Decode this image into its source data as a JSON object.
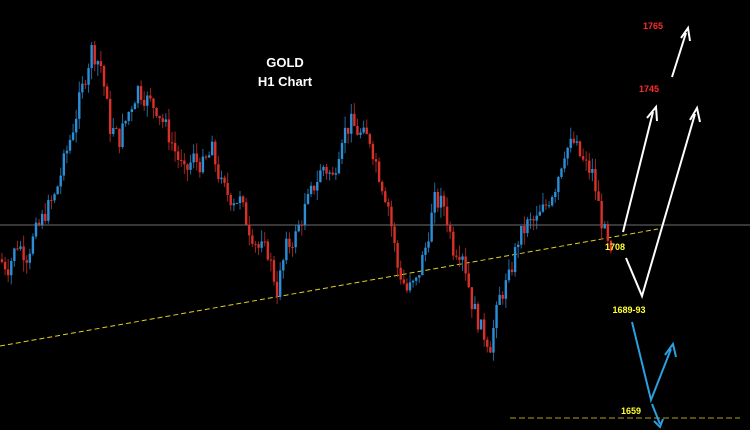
{
  "chart_data": {
    "type": "candlestick",
    "title": "GOLD",
    "subtitle": "H1 Chart",
    "colors": {
      "background": "#000000",
      "bull": "#2a8fd6",
      "bear": "#d9302a",
      "wick": "#7a8a99",
      "trendline": "#e0d020",
      "support": "#b0a020",
      "horizontal": "#8a8a8a",
      "projection_up": "#ffffff",
      "projection_down": "#2aa0e0",
      "label_yellow": "#ffff33",
      "label_red": "#ff2a2a"
    },
    "price_path": [
      1708,
      1706,
      1712,
      1709,
      1715,
      1720,
      1724,
      1733,
      1742,
      1752,
      1762,
      1758,
      1742,
      1739,
      1746,
      1752,
      1749,
      1747,
      1742,
      1736,
      1730,
      1734,
      1732,
      1736,
      1727,
      1724,
      1723,
      1716,
      1711,
      1710,
      1700,
      1711,
      1714,
      1721,
      1727,
      1732,
      1729,
      1740,
      1743,
      1740,
      1739,
      1730,
      1722,
      1706,
      1700,
      1702,
      1711,
      1723,
      1722,
      1711,
      1710,
      1697,
      1690,
      1686,
      1698,
      1703,
      1713,
      1717,
      1718,
      1722,
      1727,
      1736,
      1738,
      1733,
      1730,
      1718,
      1708
    ],
    "levels": [
      {
        "label": "1765",
        "color": "red"
      },
      {
        "label": "1745",
        "color": "red"
      },
      {
        "label": "1708",
        "color": "yellow"
      },
      {
        "label": "1689-93",
        "color": "yellow"
      },
      {
        "label": "1659",
        "color": "yellow"
      }
    ]
  }
}
